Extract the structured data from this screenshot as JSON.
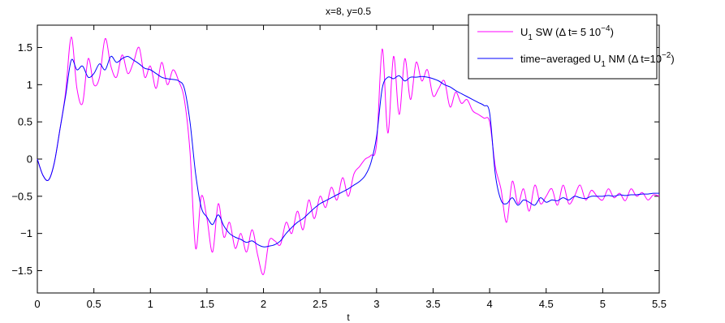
{
  "chart_data": {
    "type": "line",
    "title": "x=8, y=0.5",
    "xlabel": "t",
    "ylabel": "",
    "xlim": [
      0,
      5.5
    ],
    "ylim": [
      -1.8,
      1.8
    ],
    "xticks": [
      0,
      0.5,
      1,
      1.5,
      2,
      2.5,
      3,
      3.5,
      4,
      4.5,
      5,
      5.5
    ],
    "xtick_labels": [
      "0",
      "0.5",
      "1",
      "1.5",
      "2",
      "2.5",
      "3",
      "3.5",
      "4",
      "4.5",
      "5",
      "5.5"
    ],
    "yticks": [
      -1.5,
      -1,
      -0.5,
      0,
      0.5,
      1,
      1.5
    ],
    "ytick_labels": [
      "−1.5",
      "−1",
      "−0.5",
      "0",
      "0.5",
      "1",
      "1.5"
    ],
    "grid": false,
    "legend_position": "top-right",
    "series": [
      {
        "name_main": "U",
        "name_sub": "1",
        "name_rest": " SW (Δ t= 5 10",
        "name_sup": "−4",
        "name_end": ")",
        "color": "#ff00ff",
        "x": [
          0,
          0.05,
          0.1,
          0.15,
          0.2,
          0.25,
          0.3,
          0.35,
          0.4,
          0.45,
          0.5,
          0.55,
          0.6,
          0.65,
          0.7,
          0.75,
          0.8,
          0.85,
          0.9,
          0.95,
          1,
          1.05,
          1.1,
          1.15,
          1.2,
          1.25,
          1.3,
          1.35,
          1.4,
          1.45,
          1.5,
          1.55,
          1.6,
          1.65,
          1.7,
          1.75,
          1.8,
          1.85,
          1.9,
          1.95,
          2,
          2.05,
          2.1,
          2.15,
          2.2,
          2.25,
          2.3,
          2.35,
          2.4,
          2.45,
          2.5,
          2.55,
          2.6,
          2.65,
          2.7,
          2.75,
          2.8,
          2.85,
          2.9,
          2.95,
          3,
          3.05,
          3.1,
          3.15,
          3.2,
          3.25,
          3.3,
          3.35,
          3.4,
          3.45,
          3.5,
          3.55,
          3.6,
          3.65,
          3.7,
          3.75,
          3.8,
          3.85,
          3.9,
          3.95,
          4,
          4.05,
          4.1,
          4.15,
          4.2,
          4.25,
          4.3,
          4.35,
          4.4,
          4.45,
          4.5,
          4.55,
          4.6,
          4.65,
          4.7,
          4.75,
          4.8,
          4.85,
          4.9,
          4.95,
          5,
          5.05,
          5.1,
          5.15,
          5.2,
          5.25,
          5.3,
          5.35,
          5.4,
          5.45,
          5.5
        ],
        "y": [
          0,
          -0.22,
          -0.28,
          -0.05,
          0.4,
          0.9,
          1.64,
          0.95,
          0.75,
          1.35,
          1.0,
          1.1,
          1.62,
          1.25,
          1.1,
          1.4,
          1.15,
          1.3,
          1.5,
          1.1,
          1.25,
          0.95,
          1.3,
          1.0,
          1.2,
          1.05,
          0.8,
          0.1,
          -1.2,
          -0.5,
          -0.8,
          -1.25,
          -0.6,
          -1.05,
          -0.85,
          -1.2,
          -1.0,
          -1.25,
          -0.95,
          -1.3,
          -1.55,
          -1.1,
          -1.1,
          -1.15,
          -0.85,
          -1.0,
          -0.7,
          -0.95,
          -0.55,
          -0.8,
          -0.5,
          -0.65,
          -0.38,
          -0.55,
          -0.25,
          -0.5,
          -0.2,
          -0.1,
          0.0,
          0.05,
          0.2,
          1.48,
          0.35,
          1.38,
          0.6,
          1.35,
          0.8,
          1.3,
          1.05,
          1.2,
          0.85,
          0.95,
          1.05,
          0.7,
          0.9,
          0.75,
          0.8,
          0.65,
          0.6,
          0.55,
          0.5,
          -0.1,
          -0.4,
          -0.85,
          -0.3,
          -0.6,
          -0.4,
          -0.7,
          -0.35,
          -0.6,
          -0.5,
          -0.4,
          -0.62,
          -0.35,
          -0.6,
          -0.5,
          -0.35,
          -0.55,
          -0.42,
          -0.5,
          -0.55,
          -0.4,
          -0.52,
          -0.46,
          -0.56,
          -0.4,
          -0.5,
          -0.45,
          -0.55,
          -0.48,
          -0.5
        ]
      },
      {
        "name_main": "time−averaged U",
        "name_sub": "1",
        "name_rest": " NM (Δ t=10",
        "name_sup": "−2",
        "name_end": ")",
        "color": "#0000ff",
        "x": [
          0,
          0.05,
          0.1,
          0.15,
          0.2,
          0.25,
          0.3,
          0.35,
          0.4,
          0.45,
          0.5,
          0.55,
          0.6,
          0.65,
          0.7,
          0.75,
          0.8,
          0.85,
          0.9,
          0.95,
          1,
          1.05,
          1.1,
          1.15,
          1.2,
          1.25,
          1.3,
          1.35,
          1.4,
          1.45,
          1.5,
          1.55,
          1.6,
          1.65,
          1.7,
          1.75,
          1.8,
          1.85,
          1.9,
          1.95,
          2,
          2.05,
          2.1,
          2.15,
          2.2,
          2.25,
          2.3,
          2.35,
          2.4,
          2.45,
          2.5,
          2.55,
          2.6,
          2.65,
          2.7,
          2.75,
          2.8,
          2.85,
          2.9,
          2.95,
          3,
          3.05,
          3.1,
          3.15,
          3.2,
          3.25,
          3.3,
          3.35,
          3.4,
          3.45,
          3.5,
          3.55,
          3.6,
          3.65,
          3.7,
          3.75,
          3.8,
          3.85,
          3.9,
          3.95,
          4,
          4.05,
          4.1,
          4.15,
          4.2,
          4.25,
          4.3,
          4.35,
          4.4,
          4.45,
          4.5,
          4.55,
          4.6,
          4.65,
          4.7,
          4.75,
          4.8,
          4.85,
          4.9,
          4.95,
          5,
          5.05,
          5.1,
          5.15,
          5.2,
          5.25,
          5.3,
          5.35,
          5.4,
          5.45,
          5.5
        ],
        "y": [
          0,
          -0.22,
          -0.28,
          -0.05,
          0.4,
          0.85,
          1.33,
          1.2,
          1.25,
          1.1,
          1.15,
          1.28,
          1.2,
          1.38,
          1.3,
          1.35,
          1.38,
          1.33,
          1.28,
          1.22,
          1.2,
          1.15,
          1.1,
          1.08,
          1.07,
          1.05,
          0.95,
          0.5,
          -0.2,
          -0.65,
          -0.78,
          -0.88,
          -0.75,
          -0.9,
          -1.0,
          -1.05,
          -1.08,
          -1.12,
          -1.1,
          -1.15,
          -1.18,
          -1.17,
          -1.15,
          -1.1,
          -1.0,
          -0.92,
          -0.85,
          -0.8,
          -0.73,
          -0.66,
          -0.6,
          -0.56,
          -0.52,
          -0.48,
          -0.44,
          -0.4,
          -0.35,
          -0.3,
          -0.22,
          -0.05,
          0.3,
          0.95,
          1.1,
          1.08,
          1.12,
          1.05,
          1.1,
          1.1,
          1.11,
          1.1,
          1.08,
          1.05,
          1.0,
          0.97,
          0.92,
          0.88,
          0.84,
          0.8,
          0.76,
          0.72,
          0.62,
          -0.2,
          -0.55,
          -0.6,
          -0.52,
          -0.62,
          -0.55,
          -0.58,
          -0.62,
          -0.52,
          -0.58,
          -0.55,
          -0.56,
          -0.52,
          -0.55,
          -0.5,
          -0.52,
          -0.53,
          -0.5,
          -0.5,
          -0.5,
          -0.49,
          -0.5,
          -0.48,
          -0.49,
          -0.48,
          -0.48,
          -0.47,
          -0.47,
          -0.46,
          -0.46
        ]
      }
    ]
  }
}
